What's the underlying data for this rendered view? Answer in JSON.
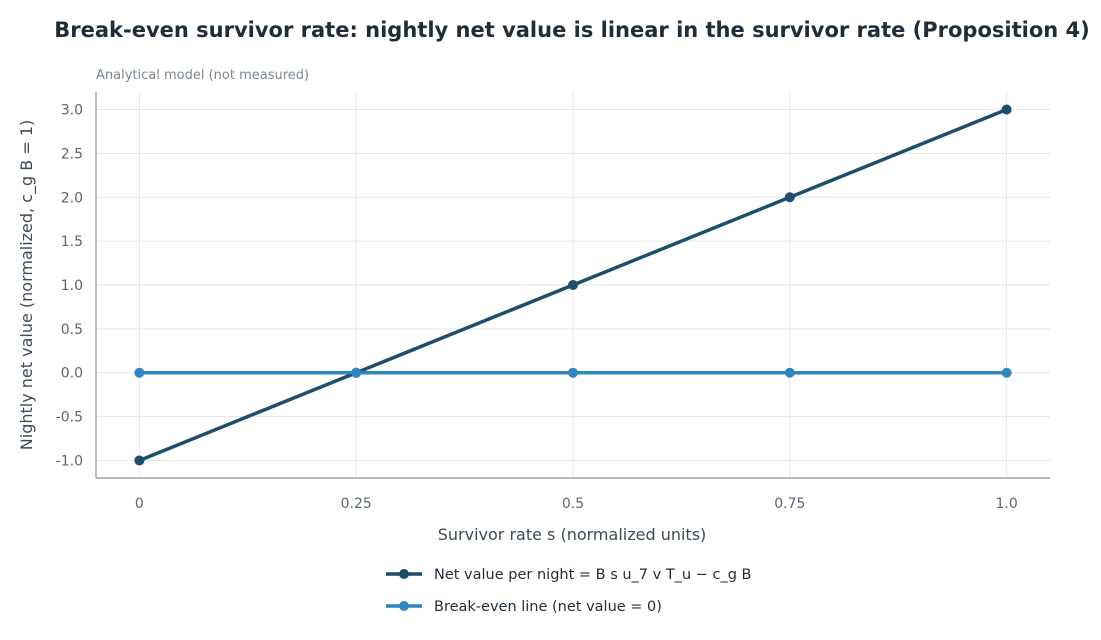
{
  "chart_data": {
    "type": "line",
    "title": "Break-even survivor rate: nightly net value is linear in the survivor rate (Proposition 4)",
    "subtitle": "Analytical model (not measured)",
    "xlabel": "Survivor rate s (normalized units)",
    "ylabel": "Nightly net value (normalized, c_g B = 1)",
    "x": [
      0,
      0.25,
      0.5,
      0.75,
      1.0
    ],
    "x_tick_labels": [
      "0",
      "0.25",
      "0.5",
      "0.75",
      "1.0"
    ],
    "xlim": [
      -0.05,
      1.05
    ],
    "ylim": [
      -1.2,
      3.2
    ],
    "y_ticks": [
      -1.0,
      -0.5,
      0.0,
      0.5,
      1.0,
      1.5,
      2.0,
      2.5,
      3.0
    ],
    "y_tick_labels": [
      "-1.0",
      "-0.5",
      "0.0",
      "0.5",
      "1.0",
      "1.5",
      "2.0",
      "2.5",
      "3.0"
    ],
    "grid": true,
    "legend_position": "bottom",
    "series": [
      {
        "name": "Net value per night = B s u_7 v T_u − c_g B",
        "values": [
          -1.0,
          0.0,
          1.0,
          2.0,
          3.0
        ],
        "color": "#1f4e6b"
      },
      {
        "name": "Break-even line (net value = 0)",
        "values": [
          0.0,
          0.0,
          0.0,
          0.0,
          0.0
        ],
        "color": "#2f86c1"
      }
    ]
  }
}
